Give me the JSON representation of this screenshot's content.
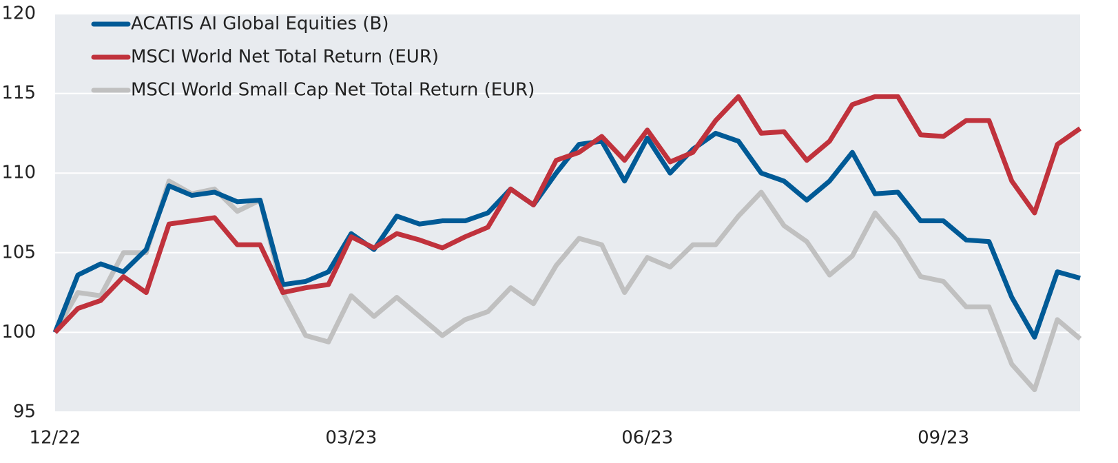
{
  "chart_data": {
    "type": "line",
    "categories": [
      "12/22",
      null,
      null,
      null,
      null,
      null,
      null,
      null,
      null,
      null,
      null,
      null,
      null,
      "03/23",
      null,
      null,
      null,
      null,
      null,
      null,
      null,
      null,
      null,
      null,
      null,
      null,
      "06/23",
      null,
      null,
      null,
      null,
      null,
      null,
      null,
      null,
      null,
      null,
      null,
      null,
      "09/23",
      null,
      null,
      null,
      null,
      null,
      null
    ],
    "series": [
      {
        "name": "ACATIS AI Global Equities (B)",
        "color": "#005a96",
        "values": [
          100,
          103.6,
          104.3,
          103.8,
          105.2,
          109.2,
          108.6,
          108.8,
          108.2,
          108.3,
          103.0,
          103.2,
          103.8,
          106.2,
          105.2,
          107.3,
          106.8,
          107,
          107,
          107.5,
          109,
          108,
          110,
          111.8,
          112,
          109.5,
          112.2,
          110,
          111.5,
          112.5,
          112,
          110,
          109.5,
          108.3,
          109.5,
          111.3,
          108.7,
          108.8,
          107,
          107,
          105.8,
          105.7,
          102.2,
          99.7,
          103.8,
          103.4
        ]
      },
      {
        "name": "MSCI World Net Total Return (EUR)",
        "color": "#c0323c",
        "values": [
          100,
          101.5,
          102,
          103.5,
          102.5,
          106.8,
          107,
          107.2,
          105.5,
          105.5,
          102.5,
          102.8,
          103,
          106,
          105.3,
          106.2,
          105.8,
          105.3,
          106,
          106.6,
          109,
          108,
          110.8,
          111.3,
          112.3,
          110.8,
          112.7,
          110.7,
          111.3,
          113.3,
          114.8,
          112.5,
          112.6,
          110.8,
          112,
          114.3,
          114.8,
          114.8,
          112.4,
          112.3,
          113.3,
          113.3,
          109.5,
          107.5,
          111.8,
          112.8
        ]
      },
      {
        "name": "MSCI World Small Cap Net Total Return (EUR)",
        "color": "#c0c0c0",
        "values": [
          100,
          102.5,
          102.3,
          105,
          105,
          109.5,
          108.7,
          109,
          107.6,
          108.3,
          102.5,
          99.8,
          99.4,
          102.3,
          101,
          102.2,
          101,
          99.8,
          100.8,
          101.3,
          102.8,
          101.8,
          104.2,
          105.9,
          105.5,
          102.5,
          104.7,
          104.1,
          105.5,
          105.5,
          107.3,
          108.8,
          106.7,
          105.7,
          103.6,
          104.8,
          107.5,
          105.8,
          103.5,
          103.2,
          101.6,
          101.6,
          98,
          96.4,
          100.8,
          99.6
        ]
      }
    ],
    "ylim": [
      95,
      120
    ],
    "yticks": [
      95,
      100,
      105,
      110,
      115,
      120
    ],
    "grid": true,
    "legend": "top-left"
  }
}
